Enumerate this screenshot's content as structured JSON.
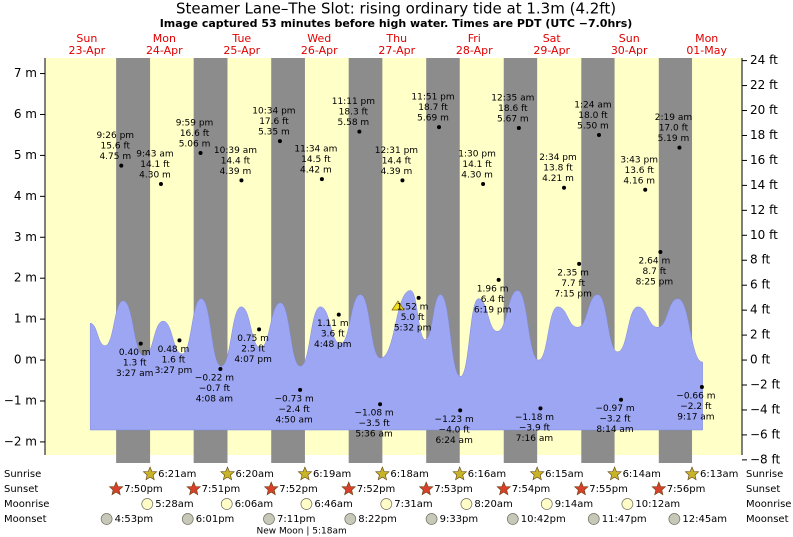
{
  "chart_data": {
    "type": "area",
    "title": "Steamer Lane–The Slot: rising  ordinary tide at 1.3m (4.2ft)",
    "subtitle": "Image captured 53 minutes before high water. Times are PDT (UTC −7.0hrs)",
    "days": {
      "names": [
        "Sun",
        "Mon",
        "Tue",
        "Wed",
        "Thu",
        "Fri",
        "Sat",
        "Sun",
        "Mon"
      ],
      "dates": [
        "23-Apr",
        "24-Apr",
        "25-Apr",
        "26-Apr",
        "27-Apr",
        "28-Apr",
        "29-Apr",
        "30-Apr",
        "01-May"
      ]
    },
    "xlim": [
      -2.2,
      213.7
    ],
    "ylim": [
      -2.32,
      7.38
    ],
    "yticks": [
      {
        "value": -2,
        "label": "−2 m"
      },
      {
        "value": -1,
        "label": "−1 m"
      },
      {
        "value": 0,
        "label": "0 m"
      },
      {
        "value": 1,
        "label": "1 m"
      },
      {
        "value": 2,
        "label": "2 m"
      },
      {
        "value": 3,
        "label": "3 m"
      },
      {
        "value": 4,
        "label": "4 m"
      },
      {
        "value": 5,
        "label": "5 m"
      },
      {
        "value": 6,
        "label": "6 m"
      },
      {
        "value": 7,
        "label": "7 m"
      }
    ],
    "y2lim": [
      -7.61,
      24.21
    ],
    "y2ticks": [
      {
        "value": -8,
        "label": "−8 ft"
      },
      {
        "value": -6,
        "label": "−6 ft"
      },
      {
        "value": -4,
        "label": "−4 ft"
      },
      {
        "value": -2,
        "label": "−2 ft"
      },
      {
        "value": 0,
        "label": "0 ft"
      },
      {
        "value": 2,
        "label": "2 ft"
      },
      {
        "value": 4,
        "label": "4 ft"
      },
      {
        "value": 6,
        "label": "6 ft"
      },
      {
        "value": 8,
        "label": "8 ft"
      },
      {
        "value": 10,
        "label": "10 ft"
      },
      {
        "value": 12,
        "label": "12 ft"
      },
      {
        "value": 14,
        "label": "14 ft"
      },
      {
        "value": 16,
        "label": "16 ft"
      },
      {
        "value": 18,
        "label": "18 ft"
      },
      {
        "value": 20,
        "label": "20 ft"
      },
      {
        "value": 22,
        "label": "22 ft"
      },
      {
        "value": 24,
        "label": "24 ft"
      }
    ],
    "tide_curve": {
      "color": "#9da6f2",
      "x": [
        11.8,
        16.4,
        22.0,
        28.5,
        34.4,
        40.3,
        46.2,
        52.4,
        58.6,
        64.5,
        70.7,
        76.9,
        83.1,
        89.3,
        95.5,
        101.7,
        111.0,
        115.6,
        120.3,
        126.5,
        132.1,
        137.9,
        144.2,
        150.7,
        156.6,
        162.8,
        169.0,
        175.2,
        181.4,
        187.6,
        193.8,
        201.5
      ],
      "values": [
        0.9,
        0.35,
        1.45,
        0.1,
        0.95,
        0.15,
        1.5,
        -0.15,
        1.3,
        0.3,
        1.4,
        -0.15,
        1.3,
        0.4,
        1.6,
        0.05,
        1.7,
        0.5,
        1.6,
        -0.4,
        1.5,
        0.7,
        1.7,
        0.0,
        1.3,
        0.8,
        1.6,
        0.2,
        1.3,
        0.8,
        1.5,
        -0.05
      ]
    },
    "extremes": {
      "x": [
        21.43,
        27.45,
        33.72,
        39.45,
        45.98,
        52.13,
        58.65,
        64.12,
        70.57,
        76.83,
        83.57,
        88.8,
        95.18,
        101.6,
        108.52,
        113.53,
        119.85,
        126.4,
        133.5,
        138.32,
        144.58,
        151.27,
        158.57,
        163.25,
        169.4,
        176.23,
        183.72,
        188.42,
        194.32,
        201.28
      ],
      "values": [
        4.75,
        0.4,
        4.3,
        0.48,
        5.06,
        -0.22,
        4.39,
        0.75,
        5.35,
        -0.73,
        4.42,
        1.11,
        5.58,
        -1.08,
        4.39,
        1.52,
        5.69,
        -1.23,
        4.3,
        1.96,
        5.67,
        -1.18,
        4.21,
        2.35,
        5.5,
        -0.97,
        4.16,
        2.64,
        5.19,
        -0.66
      ],
      "value_labels": [
        "4.75 m",
        "0.40 m",
        "4.30 m",
        "0.48 m",
        "5.06 m",
        "−0.22 m",
        "4.39 m",
        "0.75 m",
        "5.35 m",
        "−0.73 m",
        "4.42 m",
        "1.11 m",
        "5.58 m",
        "−1.08 m",
        "4.39 m",
        "1.52 m",
        "5.69 m",
        "−1.23 m",
        "4.30 m",
        "1.96 m",
        "5.67 m",
        "−1.18 m",
        "4.21 m",
        "2.35 m",
        "5.50 m",
        "−0.97 m",
        "4.16 m",
        "2.64 m",
        "5.19 m",
        "−0.66 m"
      ],
      "feet_labels": [
        "15.6 ft",
        "1.3 ft",
        "14.1 ft",
        "1.6 ft",
        "16.6 ft",
        "−0.7 ft",
        "14.4 ft",
        "2.5 ft",
        "17.6 ft",
        "−2.4 ft",
        "14.5 ft",
        "3.6 ft",
        "18.3 ft",
        "−3.5 ft",
        "14.4 ft",
        "5.0 ft",
        "18.7 ft",
        "−4.0 ft",
        "14.1 ft",
        "6.4 ft",
        "18.6 ft",
        "−3.9 ft",
        "13.8 ft",
        "7.7 ft",
        "18.0 ft",
        "−3.2 ft",
        "13.6 ft",
        "8.7 ft",
        "17.0 ft",
        "−2.2 ft"
      ],
      "times": [
        "9:26 pm",
        "3:27 am",
        "9:43 am",
        "3:27 pm",
        "9:59 pm",
        "4:08 am",
        "10:39 am",
        "4:07 pm",
        "10:34 pm",
        "4:50 am",
        "11:34 am",
        "4:48 pm",
        "11:11 pm",
        "5:36 am",
        "12:31 pm",
        "5:32 pm",
        "11:51 pm",
        "6:24 am",
        "1:30 pm",
        "6:19 pm",
        "12:35 am",
        "7:16 am",
        "2:34 pm",
        "7:15 pm",
        "1:24 am",
        "8:14 am",
        "3:43 pm",
        "8:25 pm",
        "2:19 am",
        "9:17 am"
      ]
    },
    "events": [
      {
        "name": "Sunrise",
        "color": "#c8b428",
        "times": [
          "6:21am",
          "6:20am",
          "6:19am",
          "6:18am",
          "6:16am",
          "6:15am",
          "6:14am",
          "6:13am"
        ],
        "x": [
          30.35,
          54.33,
          78.32,
          102.3,
          126.27,
          150.25,
          174.23,
          198.22
        ]
      },
      {
        "name": "Sunset",
        "color": "#d8402a",
        "times": [
          "7:50pm",
          "7:51pm",
          "7:52pm",
          "7:52pm",
          "7:53pm",
          "7:54pm",
          "7:55pm",
          "7:56pm"
        ],
        "x": [
          19.83,
          43.85,
          67.87,
          91.87,
          115.88,
          139.9,
          163.92,
          187.93
        ]
      },
      {
        "name": "Moonrise",
        "color": "#fffcc8",
        "times": [
          "5:28am",
          "6:06am",
          "6:46am",
          "7:31am",
          "8:20am",
          "9:14am",
          "10:12am"
        ],
        "x": [
          29.47,
          54.1,
          78.77,
          103.52,
          128.33,
          153.23,
          178.2
        ]
      },
      {
        "name": "Moonset",
        "color": "#c8c8b8",
        "times": [
          "4:53pm",
          "6:01pm",
          "7:11pm",
          "8:22pm",
          "9:33pm",
          "10:42pm",
          "11:47pm",
          "12:45am"
        ],
        "x": [
          16.88,
          42.02,
          67.18,
          92.37,
          117.55,
          142.7,
          167.78,
          192.75
        ]
      }
    ],
    "moon_phase": {
      "label": "New Moon | 5:18am",
      "x": 77.3
    }
  }
}
